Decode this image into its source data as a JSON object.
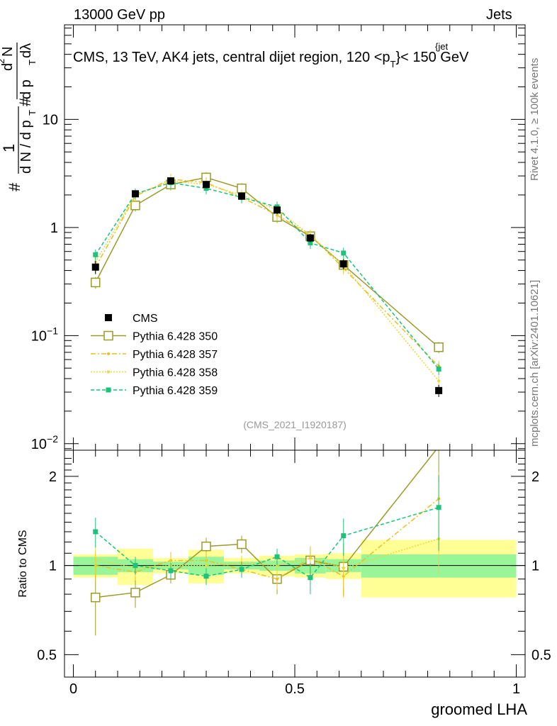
{
  "header": {
    "energy_label": "13000 GeV pp",
    "category": "Jets",
    "side_top": "Rivet 4.1.0, ≥ 100k events",
    "side_bottom": "mcplots.cern.ch [arXiv:2401.10621]"
  },
  "chart_data": {
    "type": "line",
    "title": "CMS, 13 TeV, AK4 jets, central dijet region, 120 <p",
    "title_sup": "{jet",
    "title_sub": "T",
    "title_tail": "}< 150 GeV",
    "watermark": "(CMS_2021_I1920187)",
    "xlabel": "groomed LHA",
    "ylabel_main": "# 1 / dN / dp_T # d²N / dp_T dλ",
    "ylabel_main_parts": [
      "#",
      "1",
      "d N / d p",
      "T",
      "#",
      "d",
      "2",
      "N",
      "d p",
      "T",
      "dλ"
    ],
    "ylabel_ratio": "Ratio to CMS",
    "xlim": [
      -0.02,
      1.02
    ],
    "ylim_main": [
      0.0087,
      75
    ],
    "ylim_ratio": [
      0.42,
      2.45
    ],
    "x_ticks": [
      "0",
      "0.5",
      "1"
    ],
    "x_tick_values": [
      0,
      0.5,
      1
    ],
    "y_ticks_main": [
      {
        "value": 10,
        "base": "10",
        "exp": ""
      },
      {
        "value": 1,
        "base": "1",
        "exp": ""
      },
      {
        "value": 0.1,
        "base": "10",
        "exp": "−1"
      },
      {
        "value": 0.01,
        "base": "10",
        "exp": "−2"
      }
    ],
    "y_ticks_ratio": [
      {
        "value": 2,
        "label": "2"
      },
      {
        "value": 1,
        "label": "1"
      },
      {
        "value": 0.5,
        "label": "0.5"
      }
    ],
    "bin_edges": [
      0,
      0.1,
      0.18,
      0.26,
      0.34,
      0.42,
      0.5,
      0.57,
      0.65,
      1.0
    ],
    "x": [
      0.05,
      0.14,
      0.22,
      0.3,
      0.38,
      0.46,
      0.535,
      0.61,
      0.825
    ],
    "cms": {
      "name": "CMS",
      "values": [
        0.43,
        2.05,
        2.7,
        2.5,
        1.95,
        1.45,
        0.8,
        0.46,
        0.031
      ],
      "errors": [
        0.06,
        0.15,
        0.2,
        0.2,
        0.15,
        0.12,
        0.07,
        0.05,
        0.004
      ],
      "band_inner": [
        0.07,
        0.05,
        0.03,
        0.07,
        0.03,
        0.04,
        0.06,
        0.05,
        0.09
      ],
      "band_outer": [
        0.09,
        0.14,
        0.06,
        0.13,
        0.06,
        0.08,
        0.09,
        0.1,
        0.22
      ]
    },
    "series": [
      {
        "name": "Pythia 6.428 350",
        "color": "#9b9b2a",
        "dash": "",
        "marker": "open-square",
        "values": [
          0.31,
          1.6,
          2.5,
          2.9,
          2.3,
          1.25,
          0.83,
          0.45,
          0.078
        ],
        "ratio": [
          0.78,
          0.81,
          0.93,
          1.16,
          1.18,
          0.9,
          1.04,
          0.99,
          2.52
        ],
        "ratio_err": [
          0.2,
          0.09,
          0.06,
          0.08,
          0.08,
          0.1,
          0.12,
          0.2,
          0.6
        ]
      },
      {
        "name": "Pythia 6.428 357",
        "color": "#e8c020",
        "dash": "7,3,2,3",
        "marker": "dot",
        "values": [
          0.43,
          1.95,
          2.8,
          2.6,
          1.9,
          1.3,
          0.85,
          0.42,
          0.052
        ],
        "ratio": [
          1.0,
          0.95,
          1.04,
          1.04,
          0.97,
          0.9,
          1.06,
          0.92,
          1.68
        ],
        "ratio_err": [
          0.12,
          0.06,
          0.07,
          0.07,
          0.06,
          0.07,
          0.1,
          0.14,
          0.4
        ]
      },
      {
        "name": "Pythia 6.428 358",
        "color": "#e8d838",
        "dash": "2,2",
        "marker": "dot",
        "values": [
          0.48,
          2.0,
          2.7,
          2.5,
          2.0,
          1.45,
          0.85,
          0.45,
          0.038
        ],
        "ratio": [
          1.05,
          0.98,
          1.0,
          1.0,
          1.02,
          1.0,
          1.06,
          0.98,
          1.23
        ],
        "ratio_err": [
          0.12,
          0.06,
          0.06,
          0.06,
          0.06,
          0.07,
          0.1,
          0.14,
          0.3
        ]
      },
      {
        "name": "Pythia 6.428 359",
        "color": "#1ec27a",
        "dash": "5,3",
        "marker": "filled-square",
        "values": [
          0.56,
          2.05,
          2.6,
          2.3,
          1.9,
          1.55,
          0.72,
          0.58,
          0.049
        ],
        "ratio": [
          1.3,
          1.0,
          0.96,
          0.92,
          0.97,
          1.07,
          0.91,
          1.26,
          1.57
        ],
        "ratio_err": [
          0.15,
          0.07,
          0.06,
          0.06,
          0.06,
          0.07,
          0.11,
          0.18,
          0.45
        ]
      }
    ],
    "legend": [
      "CMS",
      "Pythia 6.428 350",
      "Pythia 6.428 357",
      "Pythia 6.428 358",
      "Pythia 6.428 359"
    ],
    "band_colors": {
      "inner": "#98f598",
      "outer": "#ffff96"
    }
  }
}
